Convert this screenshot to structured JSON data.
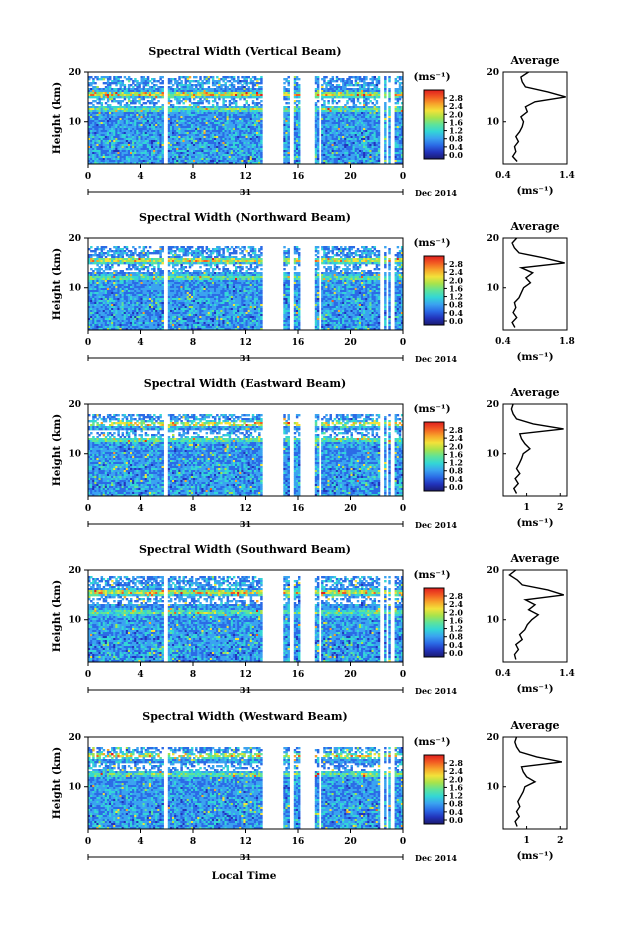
{
  "figure": {
    "xlabel": "Local Time",
    "date_label": "Dec 2014",
    "day_label": "31",
    "colorbar_unit": "(ms⁻¹)",
    "colorbar_ticks": [
      "0.0",
      "0.4",
      "0.8",
      "1.2",
      "1.6",
      "2.0",
      "2.4",
      "2.8"
    ],
    "colorscale": [
      "#1a1a70",
      "#2233bb",
      "#2b6be6",
      "#3aa3f0",
      "#33d6d6",
      "#5ee39a",
      "#a8e34b",
      "#f2e23a",
      "#f7a32a",
      "#f25a22",
      "#e01e1e"
    ]
  },
  "chart_data": [
    {
      "type": "heatmap",
      "title": "Spectral Width (Vertical Beam)",
      "ylabel": "Height (km)",
      "xticks": [
        "0",
        "4",
        "8",
        "12",
        "16",
        "20",
        "0"
      ],
      "yticks": [
        "10",
        "20"
      ],
      "xlim": [
        0,
        24
      ],
      "ylim": [
        1.5,
        20
      ],
      "gaps_hours": [
        [
          5.8,
          6.0
        ],
        [
          13.3,
          14.8
        ],
        [
          15.4,
          15.7
        ],
        [
          16.1,
          17.3
        ],
        [
          17.6,
          17.8
        ],
        [
          22.3,
          22.5
        ],
        [
          22.7,
          22.9
        ],
        [
          23.1,
          23.3
        ]
      ],
      "data_top_km": 19.3,
      "hot_rows_km": [
        15.5,
        12.5
      ],
      "average": {
        "title": "Average",
        "xlabel": "(ms⁻¹)",
        "xticks": [
          "0.4",
          "1.4"
        ],
        "xlim": [
          0.4,
          1.4
        ],
        "yticks": [
          "10",
          "20"
        ],
        "height_km": [
          2,
          3,
          4,
          5,
          6,
          7,
          8,
          9,
          10,
          11,
          12,
          13,
          14,
          15,
          16,
          17,
          18,
          19,
          20
        ],
        "width_ms": [
          0.62,
          0.55,
          0.6,
          0.58,
          0.64,
          0.6,
          0.66,
          0.7,
          0.72,
          0.68,
          0.78,
          0.75,
          0.9,
          1.38,
          1.1,
          0.75,
          0.7,
          0.68,
          0.8
        ]
      }
    },
    {
      "type": "heatmap",
      "title": "Spectral Width (Northward Beam)",
      "ylabel": "Height (km)",
      "xticks": [
        "0",
        "4",
        "8",
        "12",
        "16",
        "20",
        "0"
      ],
      "yticks": [
        "10",
        "20"
      ],
      "xlim": [
        0,
        24
      ],
      "ylim": [
        1.5,
        20
      ],
      "gaps_hours": [
        [
          5.8,
          6.0
        ],
        [
          13.3,
          14.8
        ],
        [
          15.4,
          15.7
        ],
        [
          16.1,
          17.3
        ],
        [
          17.6,
          17.8
        ],
        [
          22.3,
          22.5
        ],
        [
          22.7,
          22.9
        ],
        [
          23.1,
          23.3
        ]
      ],
      "data_top_km": 18.5,
      "hot_rows_km": [
        15.5,
        12.0
      ],
      "average": {
        "title": "Average",
        "xlabel": "(ms⁻¹)",
        "xticks": [
          "0.4",
          "1.8"
        ],
        "xlim": [
          0.4,
          1.8
        ],
        "yticks": [
          "10",
          "20"
        ],
        "height_km": [
          2,
          3,
          4,
          5,
          6,
          7,
          8,
          9,
          10,
          11,
          12,
          13,
          14,
          15,
          16,
          17,
          18,
          19,
          20
        ],
        "width_ms": [
          0.66,
          0.6,
          0.7,
          0.62,
          0.68,
          0.65,
          0.75,
          0.8,
          0.85,
          1.0,
          0.9,
          1.05,
          0.8,
          1.75,
          1.3,
          0.75,
          0.65,
          0.6,
          0.7
        ]
      }
    },
    {
      "type": "heatmap",
      "title": "Spectral Width (Eastward Beam)",
      "ylabel": "Height (km)",
      "xticks": [
        "0",
        "4",
        "8",
        "12",
        "16",
        "20",
        "0"
      ],
      "yticks": [
        "10",
        "20"
      ],
      "xlim": [
        0,
        24
      ],
      "ylim": [
        1.5,
        20
      ],
      "gaps_hours": [
        [
          5.8,
          6.0
        ],
        [
          13.3,
          14.8
        ],
        [
          15.4,
          15.7
        ],
        [
          16.1,
          17.3
        ],
        [
          17.6,
          17.8
        ],
        [
          22.3,
          22.5
        ],
        [
          22.7,
          22.9
        ],
        [
          23.1,
          23.3
        ]
      ],
      "data_top_km": 18.0,
      "hot_rows_km": [
        16.0,
        12.8
      ],
      "average": {
        "title": "Average",
        "xlabel": "(ms⁻¹)",
        "xticks": [
          "1",
          "2"
        ],
        "xlim": [
          0.3,
          2.2
        ],
        "yticks": [
          "10",
          "20"
        ],
        "height_km": [
          2,
          3,
          4,
          5,
          6,
          7,
          8,
          9,
          10,
          11,
          12,
          13,
          14,
          15,
          16,
          17,
          18,
          19,
          20
        ],
        "width_ms": [
          0.7,
          0.62,
          0.75,
          0.66,
          0.8,
          0.7,
          0.78,
          0.85,
          0.9,
          1.1,
          0.95,
          0.85,
          0.8,
          2.1,
          1.2,
          0.7,
          0.6,
          0.55,
          0.6
        ]
      }
    },
    {
      "type": "heatmap",
      "title": "Spectral Width (Southward Beam)",
      "ylabel": "Height (km)",
      "xticks": [
        "0",
        "4",
        "8",
        "12",
        "16",
        "20",
        "0"
      ],
      "yticks": [
        "10",
        "20"
      ],
      "xlim": [
        0,
        24
      ],
      "ylim": [
        1.5,
        20
      ],
      "gaps_hours": [
        [
          5.8,
          6.0
        ],
        [
          13.3,
          14.8
        ],
        [
          15.4,
          15.7
        ],
        [
          16.1,
          17.3
        ],
        [
          17.6,
          17.8
        ],
        [
          22.3,
          22.5
        ],
        [
          22.7,
          22.9
        ],
        [
          23.1,
          23.3
        ]
      ],
      "data_top_km": 18.8,
      "hot_rows_km": [
        15.5,
        11.5
      ],
      "average": {
        "title": "Average",
        "xlabel": "(ms⁻¹)",
        "xticks": [
          "0.4",
          "1.4"
        ],
        "xlim": [
          0.4,
          1.4
        ],
        "yticks": [
          "10",
          "20"
        ],
        "height_km": [
          2,
          3,
          4,
          5,
          6,
          7,
          8,
          9,
          10,
          11,
          12,
          13,
          14,
          15,
          16,
          17,
          18,
          19,
          20
        ],
        "width_ms": [
          0.6,
          0.58,
          0.64,
          0.6,
          0.7,
          0.66,
          0.74,
          0.78,
          0.85,
          0.95,
          0.8,
          0.9,
          0.75,
          1.35,
          1.1,
          0.7,
          0.62,
          0.5,
          0.6
        ]
      }
    },
    {
      "type": "heatmap",
      "title": "Spectral Width (Westward Beam)",
      "ylabel": "Height (km)",
      "xticks": [
        "0",
        "4",
        "8",
        "12",
        "16",
        "20",
        "0"
      ],
      "yticks": [
        "10",
        "20"
      ],
      "xlim": [
        0,
        24
      ],
      "ylim": [
        1.5,
        20
      ],
      "gaps_hours": [
        [
          5.8,
          6.0
        ],
        [
          13.3,
          14.8
        ],
        [
          15.4,
          15.7
        ],
        [
          16.1,
          17.3
        ],
        [
          17.6,
          17.8
        ],
        [
          22.3,
          22.5
        ],
        [
          22.7,
          22.9
        ],
        [
          23.1,
          23.3
        ]
      ],
      "data_top_km": 18.2,
      "hot_rows_km": [
        16.3,
        12.5
      ],
      "average": {
        "title": "Average",
        "xlabel": "(ms⁻¹)",
        "xticks": [
          "1",
          "2"
        ],
        "xlim": [
          0.3,
          2.2
        ],
        "yticks": [
          "10",
          "20"
        ],
        "height_km": [
          2,
          3,
          4,
          5,
          6,
          7,
          8,
          9,
          10,
          11,
          12,
          13,
          14,
          15,
          16,
          17,
          18,
          19,
          20
        ],
        "width_ms": [
          0.72,
          0.66,
          0.78,
          0.7,
          0.8,
          0.74,
          0.82,
          0.9,
          0.95,
          1.25,
          1.0,
          0.9,
          0.85,
          2.05,
          1.3,
          0.8,
          0.7,
          0.65,
          0.7
        ]
      }
    }
  ]
}
